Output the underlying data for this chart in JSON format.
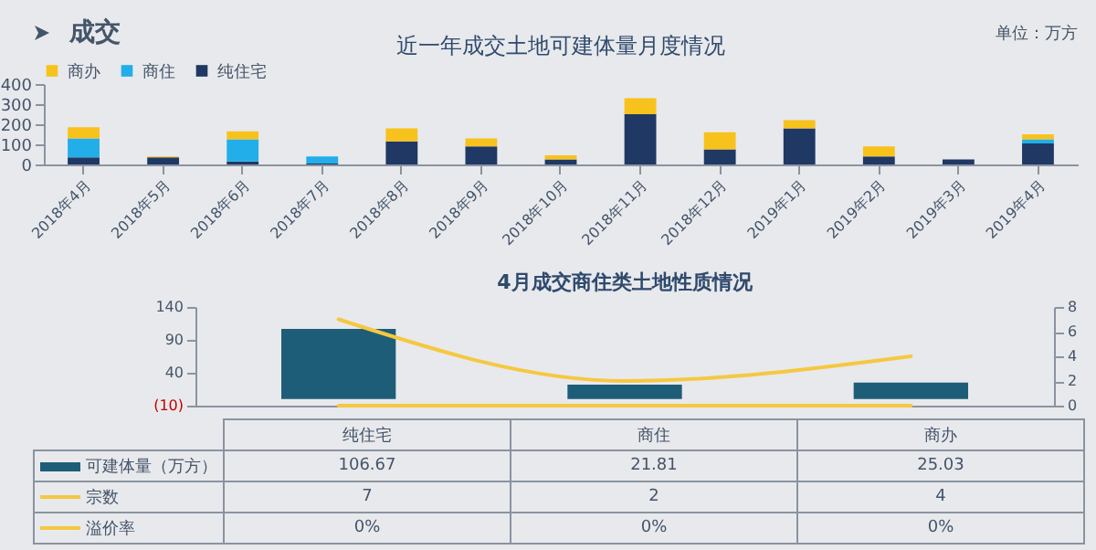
{
  "chart_data": [
    {
      "type": "bar",
      "title": "近一年成交土地可建体量月度情况",
      "annotations": [
        "成交",
        "单位：万方"
      ],
      "categories": [
        "2018年4月",
        "2018年5月",
        "2018年6月",
        "2018年7月",
        "2018年8月",
        "2018年9月",
        "2018年10月",
        "2018年11月",
        "2018年12月",
        "2019年1月",
        "2019年2月",
        "2019年3月",
        "2019年4月"
      ],
      "series": [
        {
          "name": "纯住宅",
          "color": "#1f3864",
          "values": [
            35,
            35,
            15,
            5,
            115,
            90,
            25,
            250,
            75,
            180,
            40,
            25,
            105
          ]
        },
        {
          "name": "商住",
          "color": "#22aee8",
          "values": [
            95,
            null,
            110,
            35,
            null,
            null,
            null,
            null,
            null,
            null,
            null,
            null,
            20
          ]
        },
        {
          "name": "商办",
          "color": "#f8c21c",
          "values": [
            55,
            5,
            40,
            null,
            65,
            40,
            20,
            80,
            85,
            40,
            50,
            null,
            25
          ]
        }
      ],
      "stacked": true,
      "ylim": [
        0,
        400
      ],
      "yticks": [
        0,
        100,
        200,
        300,
        400
      ],
      "legend": "top"
    },
    {
      "type": "bar",
      "title": "4月成交商住类土地性质情况",
      "categories": [
        "纯住宅",
        "商住",
        "商办"
      ],
      "series": [
        {
          "name": "可建体量（万方）",
          "color": "#1e5d78",
          "values": [
            106.67,
            21.81,
            25.03
          ]
        },
        {
          "name": "宗数",
          "type": "line",
          "axis": "y2",
          "color": "#f5c842",
          "values": [
            7,
            2,
            4
          ]
        },
        {
          "name": "溢价率",
          "type": "line",
          "axis": "y2",
          "color": "#f5c842",
          "values": [
            0,
            0,
            0
          ],
          "value_labels": [
            "0%",
            "0%",
            "0%"
          ]
        }
      ],
      "ylim": [
        -10,
        140
      ],
      "yticks": [
        {
          "value": -10,
          "label": "(10)"
        },
        40,
        90,
        140
      ],
      "y2lim": [
        0,
        8
      ],
      "y2ticks": [
        0,
        2,
        4,
        6,
        8
      ],
      "data_labels": true,
      "legend": "bottom"
    }
  ]
}
